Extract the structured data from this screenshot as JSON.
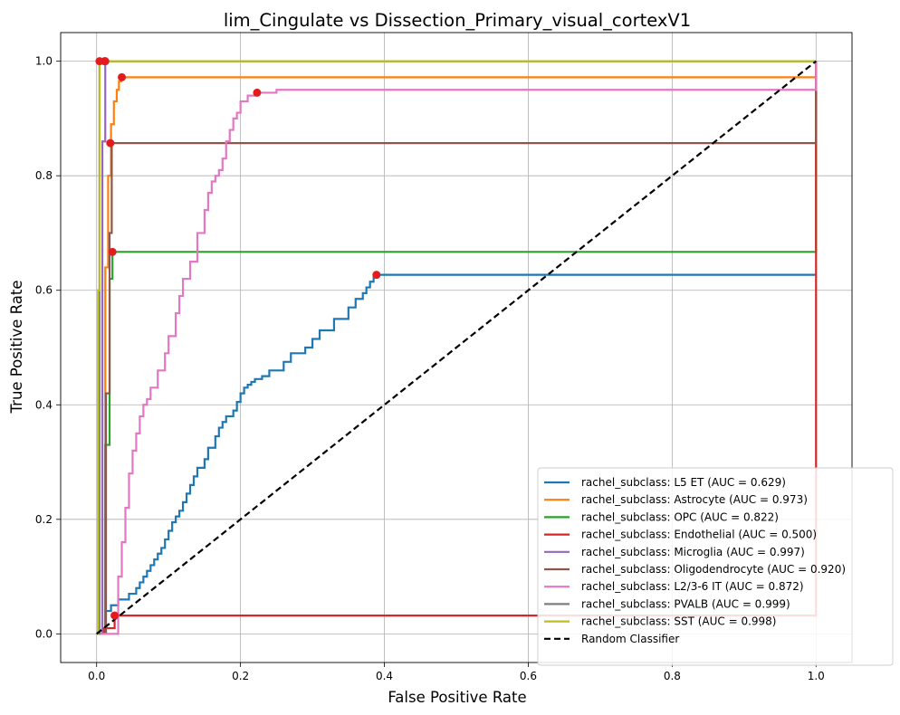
{
  "chart_data": {
    "type": "line",
    "title": "lim_Cingulate vs Dissection_Primary_visual_cortexV1",
    "xlabel": "False Positive Rate",
    "ylabel": "True Positive Rate",
    "xlim": [
      -0.05,
      1.05
    ],
    "ylim": [
      -0.05,
      1.05
    ],
    "xticks": [
      "0.0",
      "0.2",
      "0.4",
      "0.6",
      "0.8",
      "1.0"
    ],
    "yticks": [
      "0.0",
      "0.2",
      "0.4",
      "0.6",
      "0.8",
      "1.0"
    ],
    "grid": true,
    "legend_position": "lower-right",
    "series": [
      {
        "name": "rachel_subclass: L5 ET (AUC = 0.629)",
        "color": "#1f77b4",
        "x": [
          0,
          0.012,
          0.012,
          0.02,
          0.02,
          0.03,
          0.03,
          0.045,
          0.045,
          0.055,
          0.055,
          0.06,
          0.06,
          0.065,
          0.065,
          0.07,
          0.07,
          0.075,
          0.075,
          0.08,
          0.08,
          0.085,
          0.085,
          0.09,
          0.09,
          0.095,
          0.095,
          0.1,
          0.1,
          0.105,
          0.105,
          0.11,
          0.11,
          0.115,
          0.115,
          0.12,
          0.12,
          0.125,
          0.125,
          0.13,
          0.13,
          0.135,
          0.135,
          0.14,
          0.14,
          0.15,
          0.15,
          0.155,
          0.155,
          0.165,
          0.165,
          0.17,
          0.17,
          0.175,
          0.175,
          0.18,
          0.18,
          0.19,
          0.19,
          0.195,
          0.195,
          0.2,
          0.2,
          0.205,
          0.205,
          0.21,
          0.21,
          0.215,
          0.215,
          0.22,
          0.22,
          0.23,
          0.23,
          0.24,
          0.24,
          0.26,
          0.26,
          0.27,
          0.27,
          0.29,
          0.29,
          0.3,
          0.3,
          0.31,
          0.31,
          0.33,
          0.33,
          0.35,
          0.35,
          0.36,
          0.36,
          0.37,
          0.37,
          0.375,
          0.375,
          0.38,
          0.38,
          0.385,
          0.385,
          0.39,
          0.39,
          1.0,
          1.0
        ],
        "y": [
          0,
          0,
          0.04,
          0.04,
          0.05,
          0.05,
          0.06,
          0.06,
          0.07,
          0.07,
          0.08,
          0.08,
          0.09,
          0.09,
          0.1,
          0.1,
          0.11,
          0.11,
          0.12,
          0.12,
          0.13,
          0.13,
          0.14,
          0.14,
          0.15,
          0.15,
          0.165,
          0.165,
          0.18,
          0.18,
          0.195,
          0.195,
          0.205,
          0.205,
          0.215,
          0.215,
          0.23,
          0.23,
          0.245,
          0.245,
          0.26,
          0.26,
          0.275,
          0.275,
          0.29,
          0.29,
          0.305,
          0.305,
          0.325,
          0.325,
          0.345,
          0.345,
          0.36,
          0.36,
          0.37,
          0.37,
          0.38,
          0.38,
          0.39,
          0.39,
          0.405,
          0.405,
          0.42,
          0.42,
          0.43,
          0.43,
          0.435,
          0.435,
          0.44,
          0.44,
          0.445,
          0.445,
          0.45,
          0.45,
          0.46,
          0.46,
          0.475,
          0.475,
          0.49,
          0.49,
          0.5,
          0.5,
          0.515,
          0.515,
          0.53,
          0.53,
          0.55,
          0.55,
          0.57,
          0.57,
          0.585,
          0.585,
          0.595,
          0.595,
          0.605,
          0.605,
          0.615,
          0.615,
          0.627,
          0.627,
          0.627,
          0.627,
          0.627
        ]
      },
      {
        "name": "rachel_subclass: Astrocyte (AUC = 0.973)",
        "color": "#ff7f0e",
        "x": [
          0,
          0.012,
          0.012,
          0.016,
          0.016,
          0.02,
          0.02,
          0.024,
          0.024,
          0.028,
          0.028,
          0.031,
          0.031,
          0.034,
          0.034,
          1.0,
          1.0
        ],
        "y": [
          0,
          0,
          0.64,
          0.64,
          0.8,
          0.8,
          0.89,
          0.89,
          0.93,
          0.93,
          0.95,
          0.95,
          0.965,
          0.965,
          0.972,
          0.972,
          1.0
        ]
      },
      {
        "name": "rachel_subclass: OPC (AUC = 0.822)",
        "color": "#2ca02c",
        "x": [
          0,
          0.012,
          0.012,
          0.018,
          0.018,
          0.022,
          0.022,
          1.0,
          1.0
        ],
        "y": [
          0,
          0,
          0.33,
          0.33,
          0.62,
          0.62,
          0.667,
          0.667,
          1.0
        ]
      },
      {
        "name": "rachel_subclass: Endothelial (AUC = 0.500)",
        "color": "#d62728",
        "x": [
          0,
          0.01,
          0.01,
          0.025,
          0.025,
          1.0,
          1.0
        ],
        "y": [
          0,
          0,
          0.01,
          0.01,
          0.032,
          0.032,
          1.0
        ]
      },
      {
        "name": "rachel_subclass: Microglia (AUC = 0.997)",
        "color": "#9467bd",
        "x": [
          0,
          0.008,
          0.008,
          0.012,
          0.012,
          1.0
        ],
        "y": [
          0,
          0,
          0.86,
          0.86,
          1.0,
          1.0
        ]
      },
      {
        "name": "rachel_subclass: Oligodendrocyte (AUC = 0.920)",
        "color": "#8c564b",
        "x": [
          0,
          0.013,
          0.013,
          0.018,
          0.018,
          0.021,
          0.021,
          1.0,
          1.0
        ],
        "y": [
          0,
          0,
          0.42,
          0.42,
          0.7,
          0.7,
          0.857,
          0.857,
          1.0
        ]
      },
      {
        "name": "rachel_subclass: L2/3-6 IT (AUC = 0.872)",
        "color": "#e377c2",
        "x": [
          0,
          0.03,
          0.03,
          0.035,
          0.035,
          0.04,
          0.04,
          0.045,
          0.045,
          0.05,
          0.05,
          0.055,
          0.055,
          0.06,
          0.06,
          0.065,
          0.065,
          0.07,
          0.07,
          0.075,
          0.075,
          0.085,
          0.085,
          0.095,
          0.095,
          0.1,
          0.1,
          0.11,
          0.11,
          0.115,
          0.115,
          0.12,
          0.12,
          0.13,
          0.13,
          0.14,
          0.14,
          0.15,
          0.15,
          0.155,
          0.155,
          0.16,
          0.16,
          0.165,
          0.165,
          0.17,
          0.17,
          0.175,
          0.175,
          0.18,
          0.18,
          0.185,
          0.185,
          0.19,
          0.19,
          0.195,
          0.195,
          0.2,
          0.2,
          0.21,
          0.21,
          0.22,
          0.22,
          0.25,
          0.25,
          1.0,
          1.0
        ],
        "y": [
          0,
          0,
          0.1,
          0.1,
          0.16,
          0.16,
          0.22,
          0.22,
          0.28,
          0.28,
          0.32,
          0.32,
          0.35,
          0.35,
          0.38,
          0.38,
          0.4,
          0.4,
          0.41,
          0.41,
          0.43,
          0.43,
          0.46,
          0.46,
          0.49,
          0.49,
          0.52,
          0.52,
          0.56,
          0.56,
          0.59,
          0.59,
          0.62,
          0.62,
          0.65,
          0.65,
          0.7,
          0.7,
          0.74,
          0.74,
          0.77,
          0.77,
          0.79,
          0.79,
          0.8,
          0.8,
          0.81,
          0.81,
          0.83,
          0.83,
          0.86,
          0.86,
          0.88,
          0.88,
          0.9,
          0.9,
          0.91,
          0.91,
          0.93,
          0.93,
          0.94,
          0.94,
          0.945,
          0.945,
          0.95,
          0.95,
          1.0
        ]
      },
      {
        "name": "rachel_subclass: PVALB (AUC = 0.999)",
        "color": "#7f7f7f",
        "x": [
          0,
          0.004,
          0.004,
          1.0
        ],
        "y": [
          0,
          0,
          1.0,
          1.0
        ]
      },
      {
        "name": "rachel_subclass: SST (AUC = 0.998)",
        "color": "#bcbd22",
        "x": [
          0,
          0.002,
          0.002,
          0.004,
          0.004,
          1.0
        ],
        "y": [
          0,
          0,
          0.6,
          0.6,
          1.0,
          1.0
        ]
      },
      {
        "name": "Random Classifier",
        "color": "#000000",
        "dashed": true,
        "x": [
          0,
          1
        ],
        "y": [
          0,
          1
        ]
      }
    ],
    "optimal_points": [
      {
        "x": 0.389,
        "y": 0.627
      },
      {
        "x": 0.035,
        "y": 0.972
      },
      {
        "x": 0.022,
        "y": 0.667
      },
      {
        "x": 0.025,
        "y": 0.032
      },
      {
        "x": 0.012,
        "y": 1.0
      },
      {
        "x": 0.019,
        "y": 0.857
      },
      {
        "x": 0.223,
        "y": 0.945
      },
      {
        "x": 0.004,
        "y": 1.0
      },
      {
        "x": 0.011,
        "y": 1.0
      }
    ]
  }
}
